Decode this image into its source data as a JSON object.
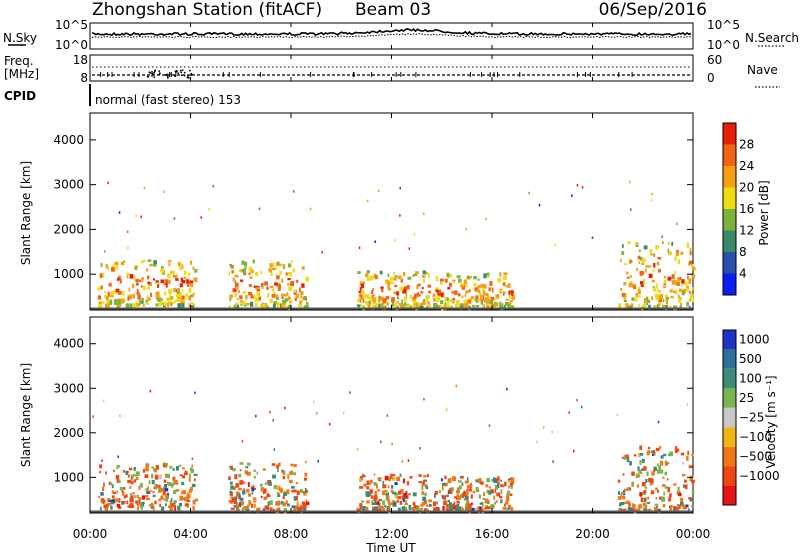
{
  "header": {
    "title": "Zhongshan Station (fitACF)",
    "beam": "Beam 03",
    "date": "06/Sep/2016"
  },
  "strip1": {
    "left_label": "N.Sky",
    "right_label": "N.Search",
    "left_ticks": [
      "10^5",
      "10^0"
    ],
    "right_ticks": [
      "10^5",
      "10^0"
    ]
  },
  "strip2": {
    "left_label_1": "Freq.",
    "left_label_2": "[MHz]",
    "right_label": "Nave",
    "left_ticks": [
      "18",
      "8"
    ],
    "right_ticks": [
      "60",
      "0"
    ]
  },
  "cpid": {
    "label": "CPID",
    "text": "normal (fast stereo) 153"
  },
  "x_axis": {
    "label": "Time UT",
    "ticks": [
      "00:00",
      "04:00",
      "08:00",
      "12:00",
      "16:00",
      "20:00",
      "00:00"
    ]
  },
  "chart_data": [
    {
      "type": "heatmap",
      "panel": "power",
      "ylabel": "Slant Range [km]",
      "yticks": [
        "1000",
        "2000",
        "3000",
        "4000"
      ],
      "ylim": [
        200,
        4600
      ],
      "xlim": [
        0,
        24
      ],
      "colorbar": {
        "label": "Power [dB]",
        "ticks": [
          "4",
          "8",
          "12",
          "16",
          "20",
          "24",
          "28"
        ],
        "colors": [
          "#0a1ef0",
          "#2850aa",
          "#3a8a6a",
          "#78b43c",
          "#f0dc14",
          "#f5a014",
          "#f06414",
          "#e61e0a"
        ]
      },
      "echo_bands": [
        {
          "t_start": 0.3,
          "t_end": 4.2,
          "r_low": 300,
          "r_high": 1300
        },
        {
          "t_start": 5.5,
          "t_end": 8.6,
          "r_low": 250,
          "r_high": 1300
        },
        {
          "t_start": 10.6,
          "t_end": 13.5,
          "r_low": 250,
          "r_high": 1050
        },
        {
          "t_start": 13.6,
          "t_end": 16.8,
          "r_low": 250,
          "r_high": 1000
        },
        {
          "t_start": 21.0,
          "t_end": 24.0,
          "r_low": 250,
          "r_high": 1700
        }
      ]
    },
    {
      "type": "heatmap",
      "panel": "velocity",
      "ylabel": "Slant Range [km]",
      "yticks": [
        "1000",
        "2000",
        "3000",
        "4000"
      ],
      "ylim": [
        200,
        4600
      ],
      "xlim": [
        0,
        24
      ],
      "colorbar": {
        "label": "Velocity [m s⁻¹]",
        "ticks": [
          "1000",
          "500",
          "100",
          "25",
          "−25",
          "−100",
          "−500",
          "−1000"
        ],
        "colors": [
          "#1e32c8",
          "#2e6e9a",
          "#3c8c78",
          "#78b450",
          "#c8c8c8",
          "#f0b414",
          "#f07814",
          "#f04614",
          "#e61414"
        ]
      },
      "echo_bands": [
        {
          "t_start": 0.3,
          "t_end": 4.2,
          "r_low": 300,
          "r_high": 1300
        },
        {
          "t_start": 5.5,
          "t_end": 8.6,
          "r_low": 250,
          "r_high": 1300
        },
        {
          "t_start": 10.6,
          "t_end": 13.5,
          "r_low": 250,
          "r_high": 1050
        },
        {
          "t_start": 13.6,
          "t_end": 16.8,
          "r_low": 250,
          "r_high": 1000
        },
        {
          "t_start": 21.0,
          "t_end": 24.0,
          "r_low": 250,
          "r_high": 1700
        }
      ]
    }
  ]
}
